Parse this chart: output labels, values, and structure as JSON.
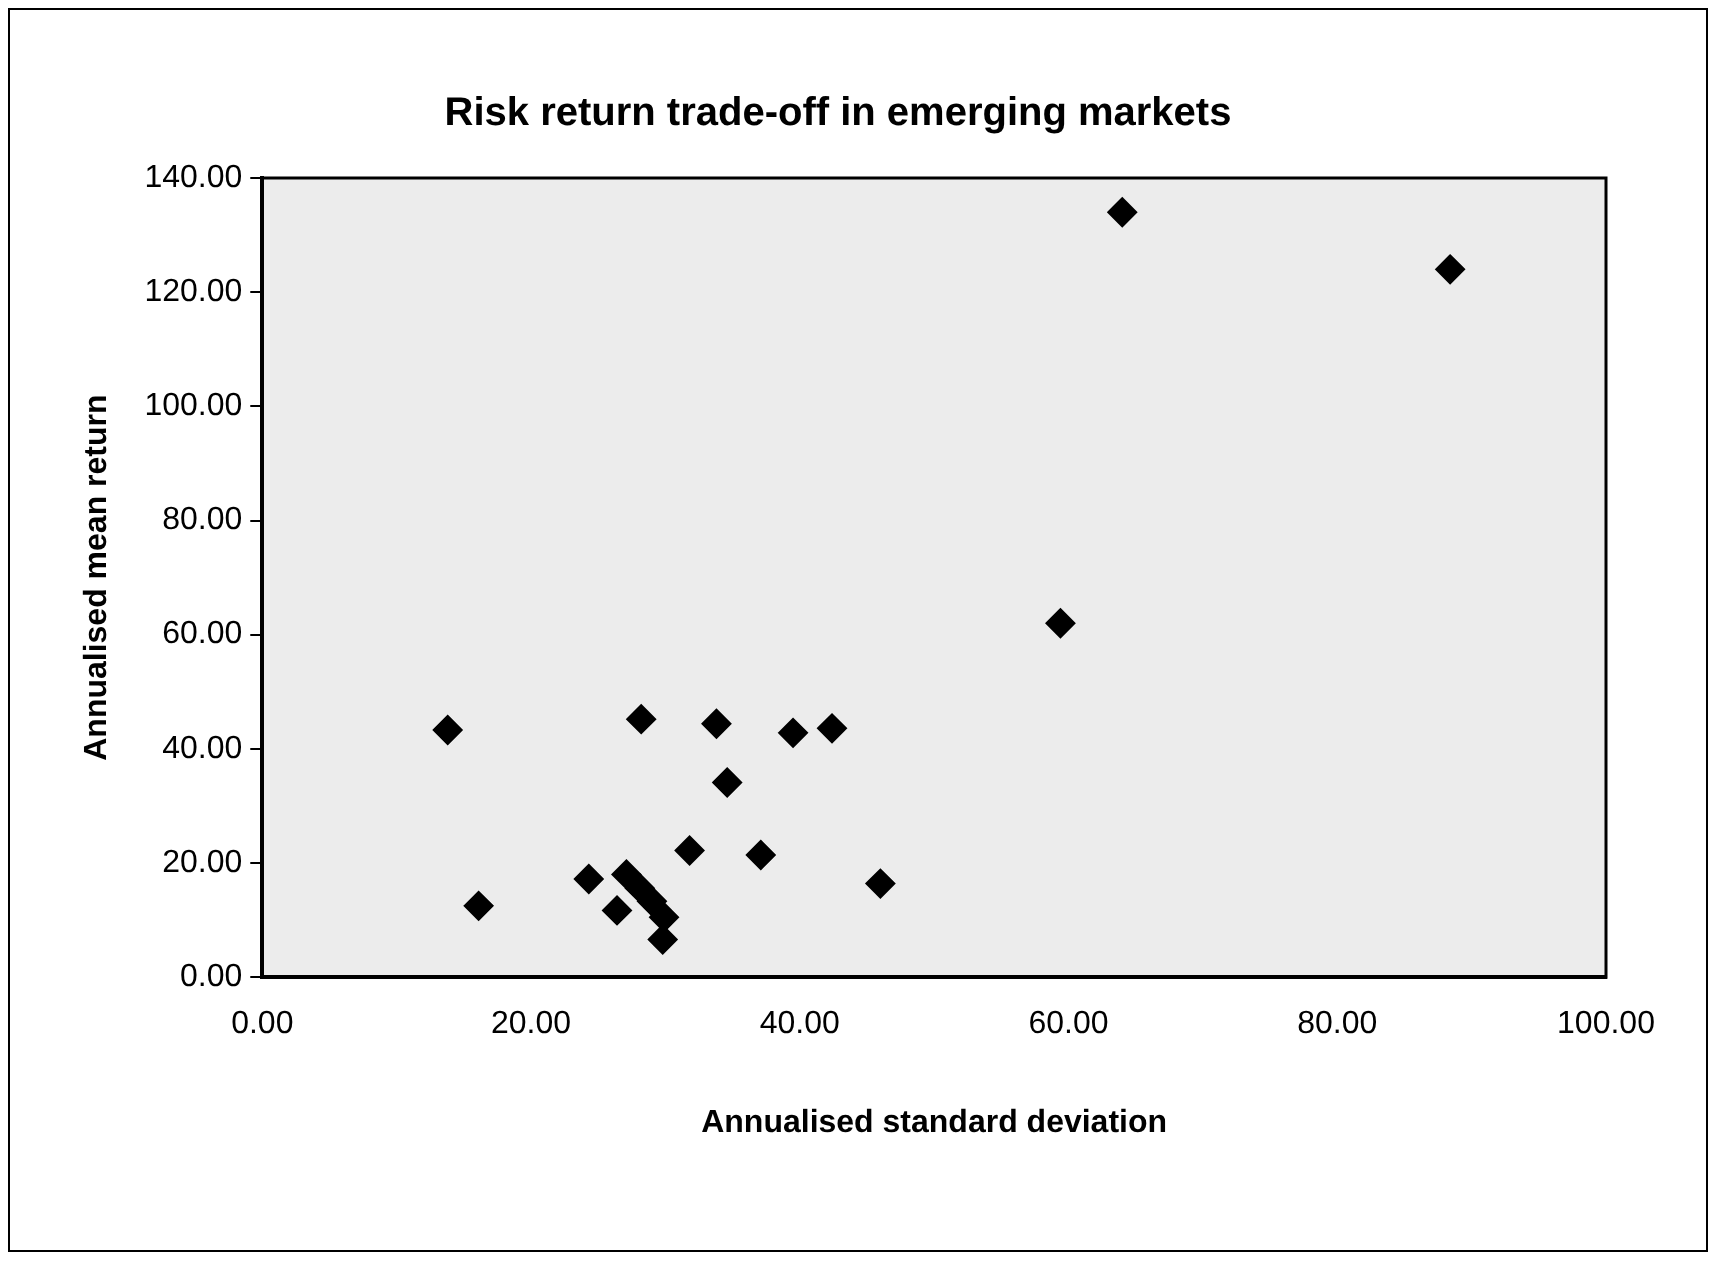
{
  "chart_data": {
    "type": "scatter",
    "title": "Risk return trade-off in emerging markets",
    "xlabel": "Annualised standard deviation",
    "ylabel": "Annualised mean return",
    "marker": "diamond",
    "grid": false,
    "series": [
      {
        "color": "#000000",
        "x": [
          64.0,
          88.4,
          59.4,
          13.8,
          28.2,
          33.8,
          39.5,
          42.4,
          34.6,
          31.8,
          37.1,
          46.0,
          16.1,
          24.3,
          26.4,
          27.1,
          28.1,
          29.0,
          29.9,
          29.8
        ],
        "values": [
          134,
          124,
          62,
          43.3,
          45.2,
          44.4,
          42.8,
          43.6,
          34.1,
          22.2,
          21.4,
          16.4,
          12.5,
          17.2,
          11.7,
          18.0,
          15.6,
          13.3,
          10.5,
          6.6
        ]
      }
    ],
    "xlim": [
      0,
      100
    ],
    "xticks": [
      {
        "value": 0,
        "label": "0.00"
      },
      {
        "value": 20,
        "label": "20.00"
      },
      {
        "value": 40,
        "label": "40.00"
      },
      {
        "value": 60,
        "label": "60.00"
      },
      {
        "value": 80,
        "label": "80.00"
      },
      {
        "value": 100,
        "label": "100.00"
      }
    ],
    "ylim": [
      0,
      140
    ],
    "yticks": [
      {
        "value": 0,
        "label": "0.00"
      },
      {
        "value": 20,
        "label": "20.00"
      },
      {
        "value": 40,
        "label": "40.00"
      },
      {
        "value": 60,
        "label": "60.00"
      },
      {
        "value": 80,
        "label": "80.00"
      },
      {
        "value": 100,
        "label": "100.00"
      },
      {
        "value": 120,
        "label": "120.00"
      },
      {
        "value": 140,
        "label": "140.00"
      }
    ]
  }
}
